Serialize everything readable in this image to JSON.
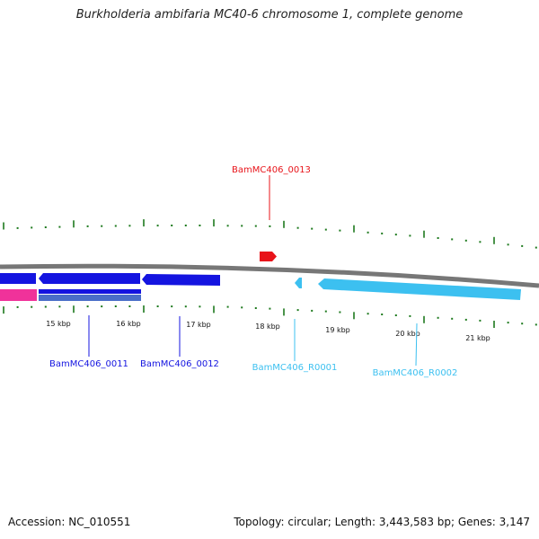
{
  "title": "Burkholderia ambifaria MC40-6 chromosome 1, complete genome",
  "footer": {
    "accession": "Accession: NC_010551",
    "stats": "Topology: circular; Length: 3,443,583 bp; Genes: 3,147"
  },
  "scale": {
    "unit": "kbp",
    "labels": [
      "15 kbp",
      "16 kbp",
      "17 kbp",
      "18 kbp",
      "19 kbp",
      "20 kbp",
      "21 kbp"
    ]
  },
  "colors": {
    "forward_red": "#e8141a",
    "cds_blue": "#1414e0",
    "rna_light_blue": "#3cc0f0",
    "pink": "#f0329a",
    "steel_blue": "#4a6ec8",
    "tick_green": "#1e7a1e",
    "backbone": "#777777"
  },
  "labels": {
    "gene_0013": "BamMC406_0013",
    "gene_0011": "BamMC406_0011",
    "gene_0012": "BamMC406_0012",
    "gene_R0001": "BamMC406_R0001",
    "gene_R0002": "BamMC406_R0002"
  }
}
